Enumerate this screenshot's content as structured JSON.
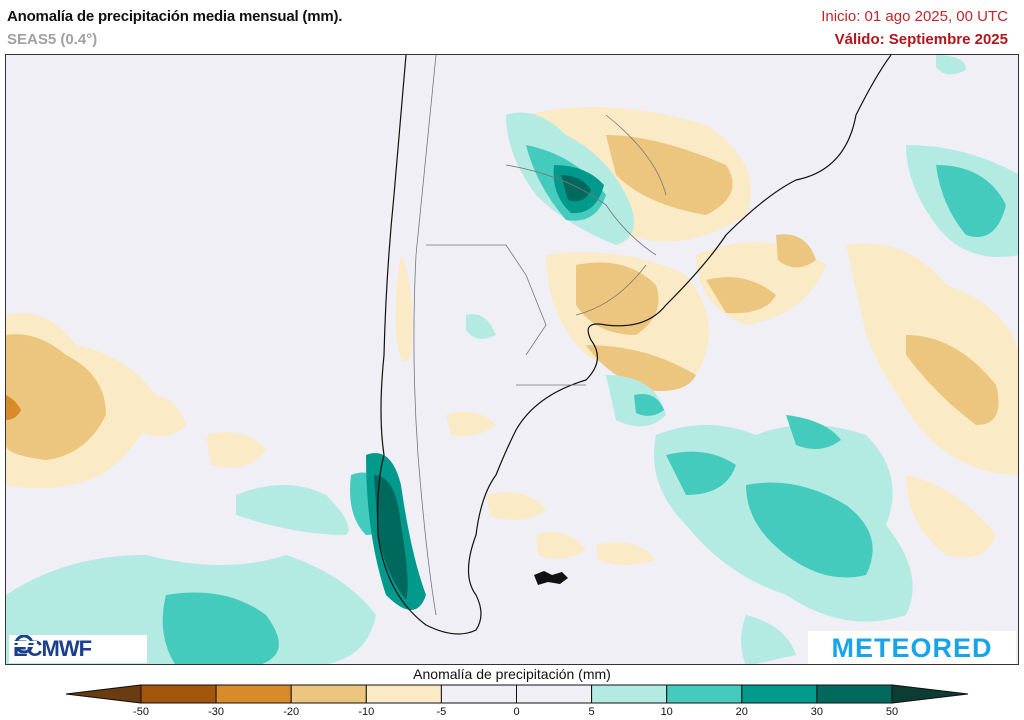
{
  "header": {
    "title": "Anomalía de precipitación media mensual (mm).",
    "subtitle": "SEAS5 (0.4°)",
    "init": "Inicio: 01 ago 2025, 00 UTC",
    "valid": "Válido: Septiembre 2025"
  },
  "logos": {
    "left": "ECMWF",
    "right": "METEORED"
  },
  "legend": {
    "title": "Anomalía de precipitación (mm)",
    "ticks": [
      "-50",
      "-30",
      "-20",
      "-10",
      "-5",
      "0",
      "5",
      "10",
      "20",
      "30",
      "50"
    ],
    "colors": [
      "#6b3b12",
      "#a3550c",
      "#d98b2b",
      "#ecc57e",
      "#fbeac6",
      "#efeff5",
      "#efeff5",
      "#b3ebe3",
      "#45cbbd",
      "#00998b",
      "#00695e",
      "#0b3d35"
    ]
  }
}
